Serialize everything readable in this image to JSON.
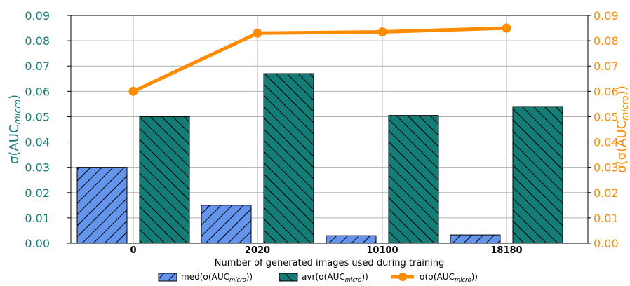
{
  "chart_data": {
    "type": "bar",
    "categories": [
      "0",
      "2020",
      "10100",
      "18180"
    ],
    "xlabel": "Number of generated images used during training",
    "ylabel_left": {
      "base": "σ(AUC",
      "sub": "micro",
      "tail": ")"
    },
    "ylabel_right": {
      "base": "σ(σ(AUC",
      "sub": "micro",
      "tail": "))"
    },
    "ylim": [
      0,
      0.09
    ],
    "yticks": [
      "0.00",
      "0.01",
      "0.02",
      "0.03",
      "0.04",
      "0.05",
      "0.06",
      "0.07",
      "0.08",
      "0.09"
    ],
    "grid": true,
    "legend_position": "bottom",
    "series": [
      {
        "name": "med(σ(AUC_micro))",
        "label_base": "med(σ(AUC",
        "label_sub": "micro",
        "label_tail": "))",
        "type": "bar",
        "color": "#6495ed",
        "hatch": "forward",
        "values": [
          0.03,
          0.015,
          0.003,
          0.0033
        ]
      },
      {
        "name": "avr(σ(AUC_micro))",
        "label_base": "avr(σ(AUC",
        "label_sub": "micro",
        "label_tail": "))",
        "type": "bar",
        "color": "#137d76",
        "hatch": "backward",
        "values": [
          0.05,
          0.067,
          0.0505,
          0.054
        ]
      },
      {
        "name": "σ(σ(AUC_micro))",
        "label_base": "σ(σ(AUC",
        "label_sub": "micro",
        "label_tail": "))",
        "type": "line",
        "color": "#ff8c00",
        "axis": "right",
        "values": [
          0.06,
          0.083,
          0.0835,
          0.085
        ]
      }
    ]
  }
}
